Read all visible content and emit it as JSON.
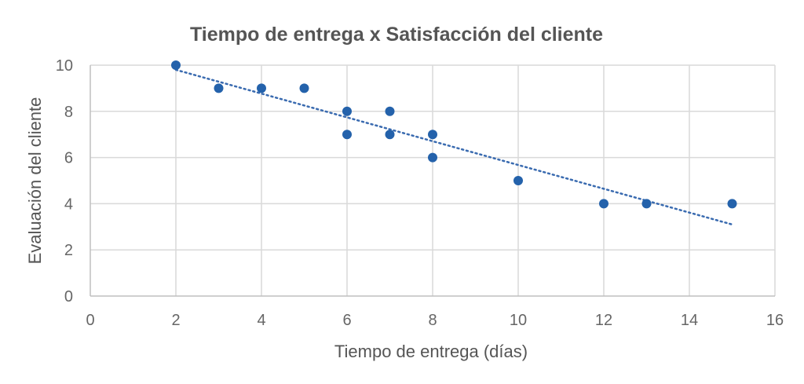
{
  "chart_data": {
    "type": "scatter",
    "title": "Tiempo de entrega x Satisfacción del cliente",
    "xlabel": "Tiempo de entrega (días)",
    "ylabel": "Evaluación del cliente",
    "xlim": [
      0,
      16
    ],
    "ylim": [
      0,
      10
    ],
    "x_ticks": [
      "0",
      "2",
      "4",
      "6",
      "8",
      "10",
      "12",
      "14",
      "16"
    ],
    "y_ticks": [
      "0",
      "2",
      "4",
      "6",
      "8",
      "10"
    ],
    "grid": true,
    "legend": "none",
    "series": [
      {
        "points": [
          {
            "x": 2,
            "y": 10
          },
          {
            "x": 3,
            "y": 9
          },
          {
            "x": 4,
            "y": 9
          },
          {
            "x": 5,
            "y": 9
          },
          {
            "x": 6,
            "y": 8
          },
          {
            "x": 6,
            "y": 7
          },
          {
            "x": 7,
            "y": 8
          },
          {
            "x": 7,
            "y": 7
          },
          {
            "x": 8,
            "y": 7
          },
          {
            "x": 8,
            "y": 6
          },
          {
            "x": 10,
            "y": 5
          },
          {
            "x": 12,
            "y": 4
          },
          {
            "x": 13,
            "y": 4
          },
          {
            "x": 15,
            "y": 4
          }
        ],
        "color": "#2462ab"
      }
    ],
    "trendline": {
      "style": "dotted",
      "color": "#3a6bb0",
      "from": {
        "x": 2,
        "y": 9.8
      },
      "to": {
        "x": 15,
        "y": 3.1
      }
    },
    "colors": {
      "grid": "#d9d9d9",
      "axis": "#bfbfbf",
      "text": "#555555"
    }
  }
}
